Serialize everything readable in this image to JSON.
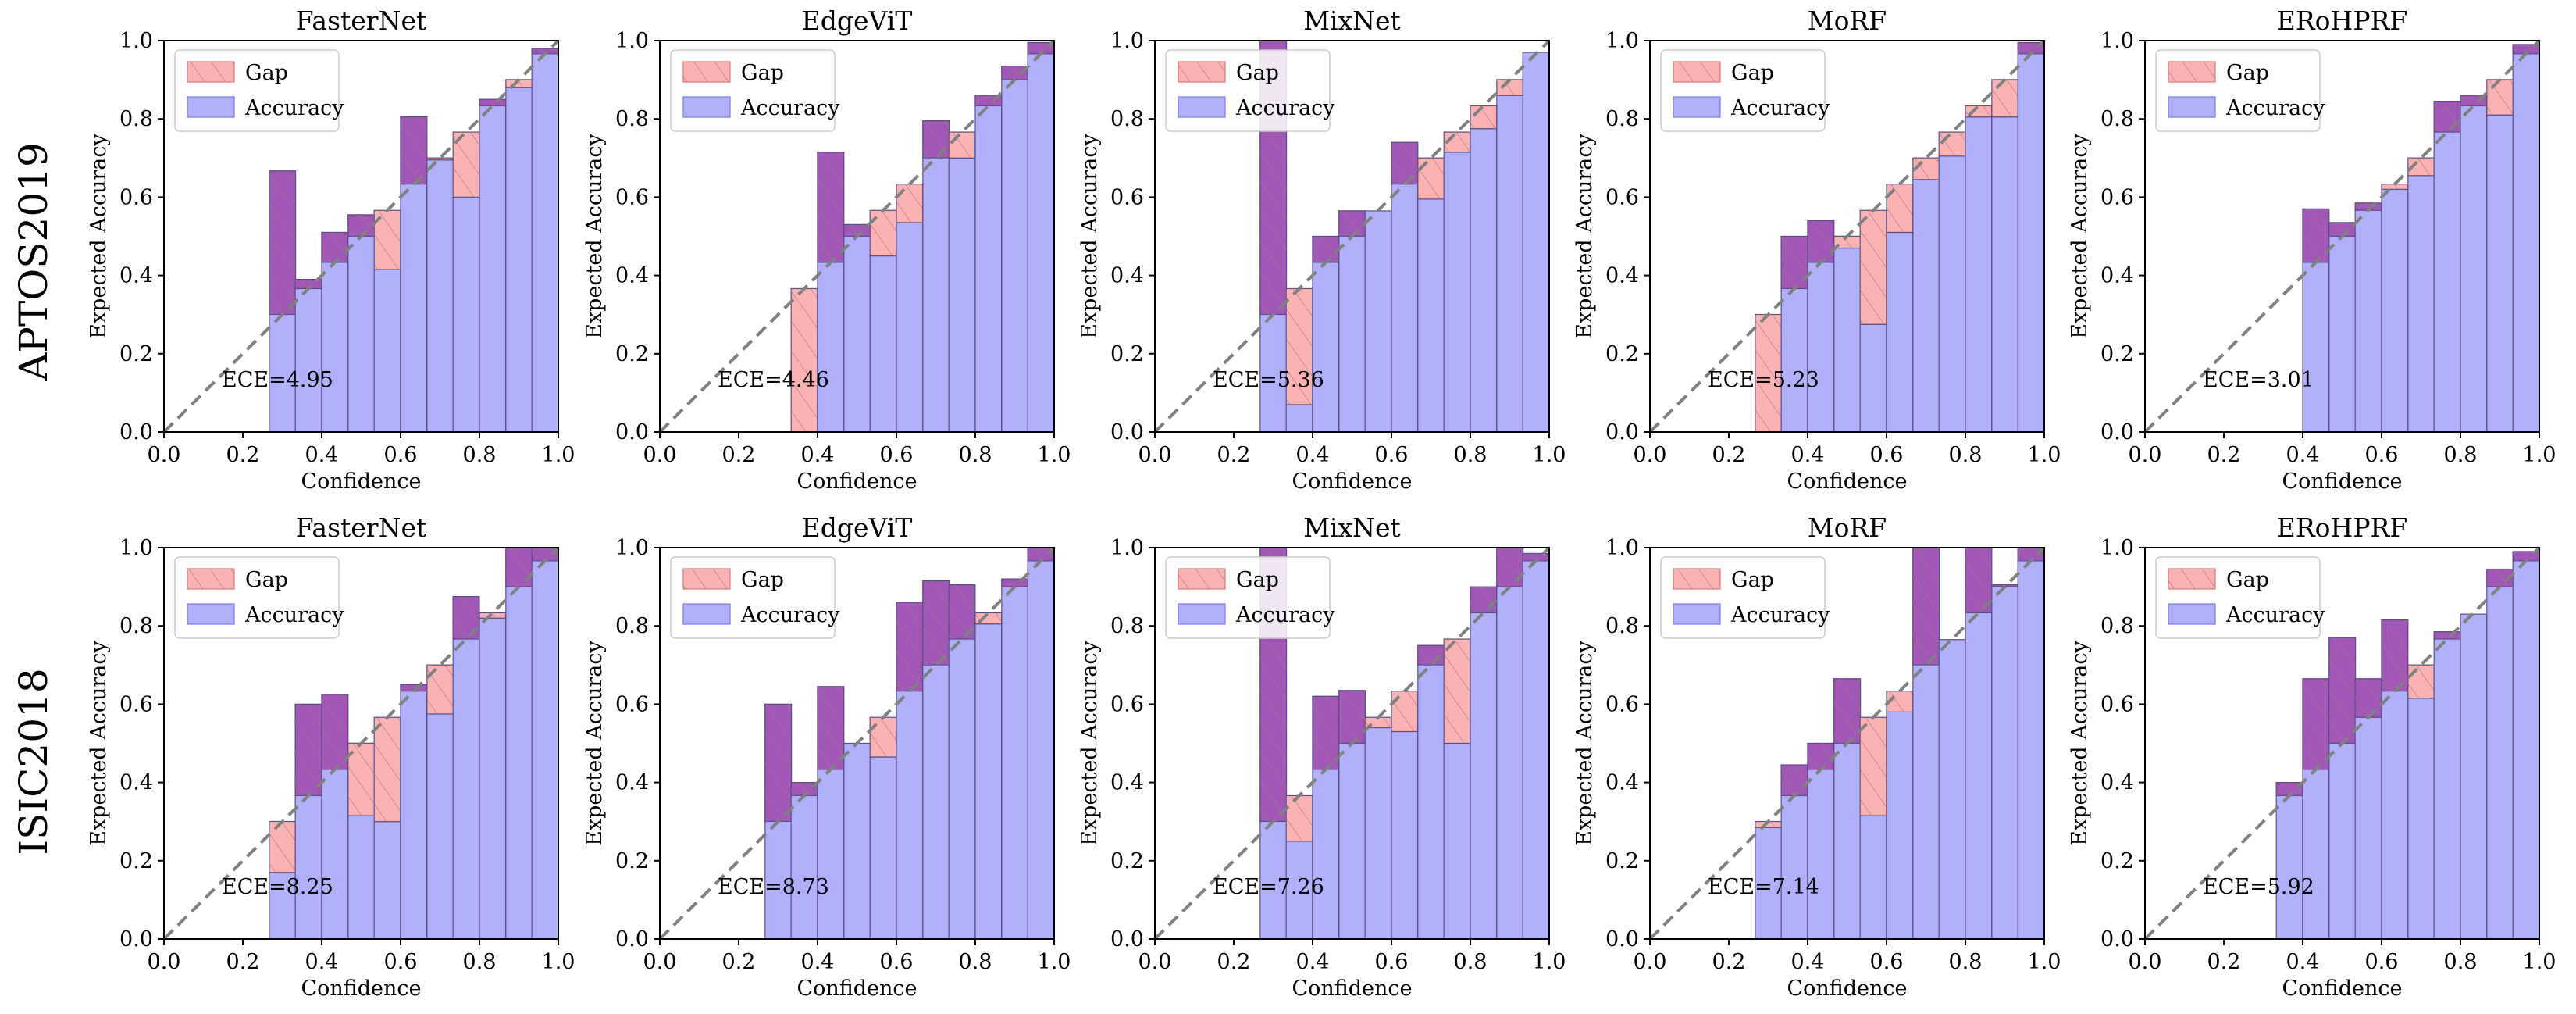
{
  "rows": [
    "APTOS2019",
    "ISIC2018"
  ],
  "common": {
    "xlabel": "Confidence",
    "ylabel": "Expected Accuracy",
    "ticks": [
      "0.0",
      "0.2",
      "0.4",
      "0.6",
      "0.8",
      "1.0"
    ],
    "legend_gap": "Gap",
    "legend_accuracy": "Accuracy",
    "colors": {
      "accuracy_fill": "#b1b1fb",
      "gap_fill": "#fab2b2",
      "overlap_fill": "#a057b6",
      "edge": "#5a4f83",
      "diagonal": "#808080"
    }
  },
  "chart_data": [
    {
      "type": "bar",
      "row": "APTOS2019",
      "title": "FasterNet",
      "ece": "ECE=4.95",
      "xlim": [
        0,
        1
      ],
      "ylim": [
        0,
        1
      ],
      "bin_width": 0.0667,
      "bins": [
        {
          "x": 0.267,
          "acc": 0.667
        },
        {
          "x": 0.333,
          "acc": 0.39
        },
        {
          "x": 0.4,
          "acc": 0.51
        },
        {
          "x": 0.467,
          "acc": 0.555
        },
        {
          "x": 0.533,
          "acc": 0.415
        },
        {
          "x": 0.6,
          "acc": 0.805
        },
        {
          "x": 0.667,
          "acc": 0.695
        },
        {
          "x": 0.733,
          "acc": 0.6
        },
        {
          "x": 0.8,
          "acc": 0.85
        },
        {
          "x": 0.867,
          "acc": 0.88
        },
        {
          "x": 0.933,
          "acc": 0.98
        }
      ]
    },
    {
      "type": "bar",
      "row": "APTOS2019",
      "title": "EdgeViT",
      "ece": "ECE=4.46",
      "xlim": [
        0,
        1
      ],
      "ylim": [
        0,
        1
      ],
      "bin_width": 0.0667,
      "bins": [
        {
          "x": 0.333,
          "acc": 0.0
        },
        {
          "x": 0.4,
          "acc": 0.715
        },
        {
          "x": 0.467,
          "acc": 0.53
        },
        {
          "x": 0.533,
          "acc": 0.45
        },
        {
          "x": 0.6,
          "acc": 0.535
        },
        {
          "x": 0.667,
          "acc": 0.795
        },
        {
          "x": 0.733,
          "acc": 0.7
        },
        {
          "x": 0.8,
          "acc": 0.86
        },
        {
          "x": 0.867,
          "acc": 0.935
        },
        {
          "x": 0.933,
          "acc": 0.995
        }
      ]
    },
    {
      "type": "bar",
      "row": "APTOS2019",
      "title": "MixNet",
      "ece": "ECE=5.36",
      "xlim": [
        0,
        1
      ],
      "ylim": [
        0,
        1
      ],
      "bin_width": 0.0667,
      "bins": [
        {
          "x": 0.267,
          "acc": 1.0
        },
        {
          "x": 0.333,
          "acc": 0.07
        },
        {
          "x": 0.4,
          "acc": 0.5
        },
        {
          "x": 0.467,
          "acc": 0.565
        },
        {
          "x": 0.533,
          "acc": 0.565
        },
        {
          "x": 0.6,
          "acc": 0.74
        },
        {
          "x": 0.667,
          "acc": 0.595
        },
        {
          "x": 0.733,
          "acc": 0.715
        },
        {
          "x": 0.8,
          "acc": 0.775
        },
        {
          "x": 0.867,
          "acc": 0.86
        },
        {
          "x": 0.933,
          "acc": 0.97
        }
      ]
    },
    {
      "type": "bar",
      "row": "APTOS2019",
      "title": "MoRF",
      "ece": "ECE=5.23",
      "xlim": [
        0,
        1
      ],
      "ylim": [
        0,
        1
      ],
      "bin_width": 0.0667,
      "bins": [
        {
          "x": 0.267,
          "acc": 0.0
        },
        {
          "x": 0.333,
          "acc": 0.5
        },
        {
          "x": 0.4,
          "acc": 0.54
        },
        {
          "x": 0.467,
          "acc": 0.47
        },
        {
          "x": 0.533,
          "acc": 0.275
        },
        {
          "x": 0.6,
          "acc": 0.51
        },
        {
          "x": 0.667,
          "acc": 0.645
        },
        {
          "x": 0.733,
          "acc": 0.705
        },
        {
          "x": 0.8,
          "acc": 0.805
        },
        {
          "x": 0.867,
          "acc": 0.805
        },
        {
          "x": 0.933,
          "acc": 0.995
        }
      ]
    },
    {
      "type": "bar",
      "row": "APTOS2019",
      "title": "ERoHPRF",
      "ece": "ECE=3.01",
      "xlim": [
        0,
        1
      ],
      "ylim": [
        0,
        1
      ],
      "bin_width": 0.0667,
      "bins": [
        {
          "x": 0.4,
          "acc": 0.57
        },
        {
          "x": 0.467,
          "acc": 0.535
        },
        {
          "x": 0.533,
          "acc": 0.585
        },
        {
          "x": 0.6,
          "acc": 0.62
        },
        {
          "x": 0.667,
          "acc": 0.655
        },
        {
          "x": 0.733,
          "acc": 0.845
        },
        {
          "x": 0.8,
          "acc": 0.86
        },
        {
          "x": 0.867,
          "acc": 0.81
        },
        {
          "x": 0.933,
          "acc": 0.99
        }
      ]
    },
    {
      "type": "bar",
      "row": "ISIC2018",
      "title": "FasterNet",
      "ece": "ECE=8.25",
      "xlim": [
        0,
        1
      ],
      "ylim": [
        0,
        1
      ],
      "bin_width": 0.0667,
      "bins": [
        {
          "x": 0.267,
          "acc": 0.17
        },
        {
          "x": 0.333,
          "acc": 0.6
        },
        {
          "x": 0.4,
          "acc": 0.625
        },
        {
          "x": 0.467,
          "acc": 0.315
        },
        {
          "x": 0.533,
          "acc": 0.3
        },
        {
          "x": 0.6,
          "acc": 0.65
        },
        {
          "x": 0.667,
          "acc": 0.575
        },
        {
          "x": 0.733,
          "acc": 0.875
        },
        {
          "x": 0.8,
          "acc": 0.82
        },
        {
          "x": 0.867,
          "acc": 1.0
        },
        {
          "x": 0.933,
          "acc": 1.0
        }
      ]
    },
    {
      "type": "bar",
      "row": "ISIC2018",
      "title": "EdgeViT",
      "ece": "ECE=8.73",
      "xlim": [
        0,
        1
      ],
      "ylim": [
        0,
        1
      ],
      "bin_width": 0.0667,
      "bins": [
        {
          "x": 0.267,
          "acc": 0.6
        },
        {
          "x": 0.333,
          "acc": 0.4
        },
        {
          "x": 0.4,
          "acc": 0.645
        },
        {
          "x": 0.467,
          "acc": 0.5
        },
        {
          "x": 0.533,
          "acc": 0.465
        },
        {
          "x": 0.6,
          "acc": 0.86
        },
        {
          "x": 0.667,
          "acc": 0.915
        },
        {
          "x": 0.733,
          "acc": 0.905
        },
        {
          "x": 0.8,
          "acc": 0.805
        },
        {
          "x": 0.867,
          "acc": 0.92
        },
        {
          "x": 0.933,
          "acc": 1.0
        }
      ]
    },
    {
      "type": "bar",
      "row": "ISIC2018",
      "title": "MixNet",
      "ece": "ECE=7.26",
      "xlim": [
        0,
        1
      ],
      "ylim": [
        0,
        1
      ],
      "bin_width": 0.0667,
      "bins": [
        {
          "x": 0.267,
          "acc": 1.0
        },
        {
          "x": 0.333,
          "acc": 0.25
        },
        {
          "x": 0.4,
          "acc": 0.62
        },
        {
          "x": 0.467,
          "acc": 0.635
        },
        {
          "x": 0.533,
          "acc": 0.54
        },
        {
          "x": 0.6,
          "acc": 0.53
        },
        {
          "x": 0.667,
          "acc": 0.75
        },
        {
          "x": 0.733,
          "acc": 0.5
        },
        {
          "x": 0.8,
          "acc": 0.9
        },
        {
          "x": 0.867,
          "acc": 1.0
        },
        {
          "x": 0.933,
          "acc": 0.985
        }
      ]
    },
    {
      "type": "bar",
      "row": "ISIC2018",
      "title": "MoRF",
      "ece": "ECE=7.14",
      "xlim": [
        0,
        1
      ],
      "ylim": [
        0,
        1
      ],
      "bin_width": 0.0667,
      "bins": [
        {
          "x": 0.267,
          "acc": 0.285
        },
        {
          "x": 0.333,
          "acc": 0.445
        },
        {
          "x": 0.4,
          "acc": 0.5
        },
        {
          "x": 0.467,
          "acc": 0.665
        },
        {
          "x": 0.533,
          "acc": 0.315
        },
        {
          "x": 0.6,
          "acc": 0.58
        },
        {
          "x": 0.667,
          "acc": 1.0
        },
        {
          "x": 0.733,
          "acc": 0.765
        },
        {
          "x": 0.8,
          "acc": 1.0
        },
        {
          "x": 0.867,
          "acc": 0.905
        },
        {
          "x": 0.933,
          "acc": 1.0
        }
      ]
    },
    {
      "type": "bar",
      "row": "ISIC2018",
      "title": "ERoHPRF",
      "ece": "ECE=5.92",
      "xlim": [
        0,
        1
      ],
      "ylim": [
        0,
        1
      ],
      "bin_width": 0.0667,
      "bins": [
        {
          "x": 0.333,
          "acc": 0.4
        },
        {
          "x": 0.4,
          "acc": 0.665
        },
        {
          "x": 0.467,
          "acc": 0.77
        },
        {
          "x": 0.533,
          "acc": 0.665
        },
        {
          "x": 0.6,
          "acc": 0.815
        },
        {
          "x": 0.667,
          "acc": 0.615
        },
        {
          "x": 0.733,
          "acc": 0.785
        },
        {
          "x": 0.8,
          "acc": 0.83
        },
        {
          "x": 0.867,
          "acc": 0.945
        },
        {
          "x": 0.933,
          "acc": 0.99
        }
      ]
    }
  ]
}
